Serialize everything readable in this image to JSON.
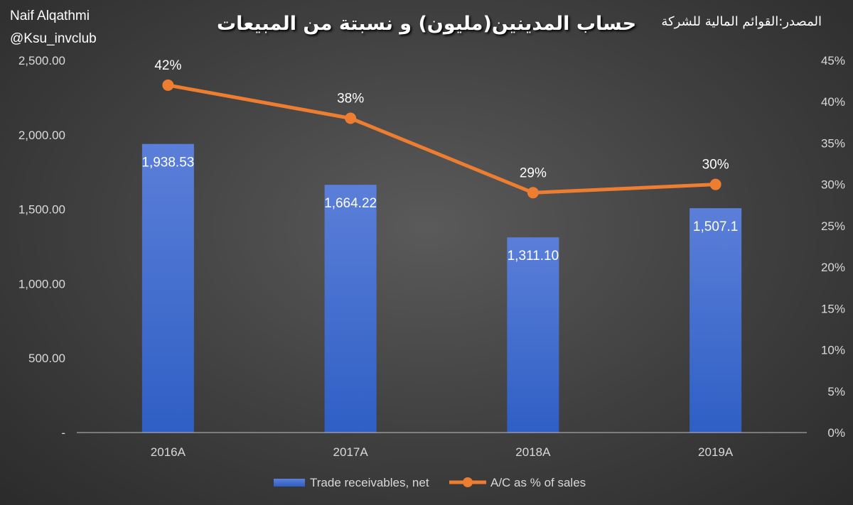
{
  "header": {
    "author_name": "Naif Alqathmi",
    "author_handle": "@Ksu_invclub",
    "title": "حساب المدينين(مليون) و نسبتة من المبيعات",
    "source": "المصدر:القوائم المالية للشركة"
  },
  "colors": {
    "bar_top": "#5b7fd9",
    "bar_bottom": "#2f5fc4",
    "line": "#ed7d31",
    "axis_text": "#d9d9d9",
    "data_label": "#ffffff"
  },
  "chart_data": {
    "type": "bar",
    "categories": [
      "2016A",
      "2017A",
      "2018A",
      "2019A"
    ],
    "series": [
      {
        "name": "Trade receivables, net",
        "type": "bar",
        "axis": "left",
        "values": [
          1938.53,
          1664.22,
          1311.1,
          1507.1
        ],
        "labels": [
          "1,938.53",
          "1,664.22",
          "1,311.10",
          "1,507.1"
        ]
      },
      {
        "name": "A/C as % of sales",
        "type": "line",
        "axis": "right",
        "values": [
          42,
          38,
          29,
          30
        ],
        "labels": [
          "42%",
          "38%",
          "29%",
          "30%"
        ]
      }
    ],
    "left_axis": {
      "range": [
        0,
        2500
      ],
      "ticks": [
        0,
        500,
        1000,
        1500,
        2000,
        2500
      ],
      "tick_labels": [
        "-",
        "500.00",
        "1,000.00",
        "1,500.00",
        "2,000.00",
        "2,500.00"
      ]
    },
    "right_axis": {
      "range": [
        0,
        45
      ],
      "ticks": [
        0,
        5,
        10,
        15,
        20,
        25,
        30,
        35,
        40,
        45
      ],
      "tick_labels": [
        "0%",
        "5%",
        "10%",
        "15%",
        "20%",
        "25%",
        "30%",
        "35%",
        "40%",
        "45%"
      ]
    },
    "grid": false,
    "legend_position": "bottom"
  }
}
